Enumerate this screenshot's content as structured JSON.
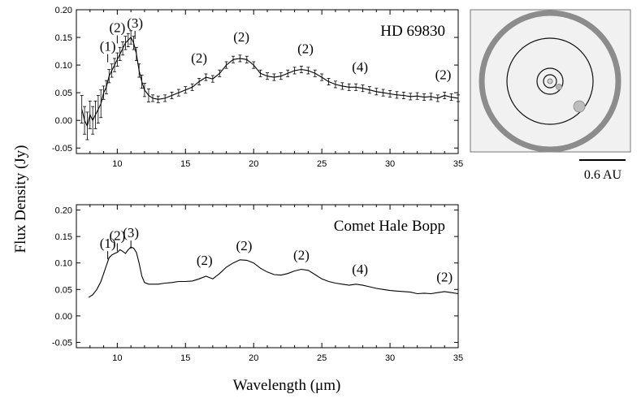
{
  "figure": {
    "ylabel": "Flux Density (Jy)",
    "xlabel": "Wavelength (μm)",
    "scale_bar_label": "0.6 AU"
  },
  "chart_data": [
    {
      "type": "line",
      "title": "HD 69830",
      "xlabel": "Wavelength (μm)",
      "ylabel": "Flux Density (Jy)",
      "xlim": [
        7,
        35
      ],
      "ylim": [
        -0.06,
        0.2
      ],
      "x_ticks": [
        10,
        15,
        20,
        25,
        30,
        35
      ],
      "y_ticks": [
        "-0.05",
        "0.00",
        "0.05",
        "0.10",
        "0.15",
        "0.20"
      ],
      "error_bars": true,
      "series": [
        {
          "name": "HD 69830 spectrum",
          "x": [
            7.4,
            7.6,
            7.8,
            8.0,
            8.2,
            8.4,
            8.6,
            8.8,
            9.0,
            9.2,
            9.4,
            9.6,
            9.8,
            10.0,
            10.2,
            10.4,
            10.6,
            10.8,
            11.0,
            11.2,
            11.4,
            11.6,
            11.8,
            12.0,
            12.3,
            12.6,
            13.0,
            13.5,
            14.0,
            14.5,
            15.0,
            15.5,
            16.0,
            16.5,
            17.0,
            17.5,
            18.0,
            18.5,
            19.0,
            19.5,
            20.0,
            20.5,
            21.0,
            21.5,
            22.0,
            22.5,
            23.0,
            23.5,
            24.0,
            24.5,
            25.0,
            25.5,
            26.0,
            26.5,
            27.0,
            27.5,
            28.0,
            28.5,
            29.0,
            29.5,
            30.0,
            30.5,
            31.0,
            31.5,
            32.0,
            32.5,
            33.0,
            33.5,
            34.0,
            34.5,
            35.0
          ],
          "y": [
            0.02,
            0.0,
            -0.01,
            0.01,
            0.0,
            0.01,
            0.02,
            0.03,
            0.05,
            0.06,
            0.08,
            0.09,
            0.1,
            0.11,
            0.12,
            0.13,
            0.14,
            0.145,
            0.15,
            0.14,
            0.12,
            0.09,
            0.07,
            0.055,
            0.045,
            0.04,
            0.038,
            0.04,
            0.045,
            0.05,
            0.055,
            0.06,
            0.07,
            0.078,
            0.075,
            0.085,
            0.1,
            0.11,
            0.112,
            0.11,
            0.1,
            0.085,
            0.08,
            0.078,
            0.08,
            0.085,
            0.09,
            0.092,
            0.09,
            0.085,
            0.078,
            0.07,
            0.065,
            0.062,
            0.06,
            0.06,
            0.058,
            0.055,
            0.052,
            0.05,
            0.048,
            0.046,
            0.045,
            0.043,
            0.044,
            0.042,
            0.043,
            0.04,
            0.045,
            0.042,
            0.04
          ]
        }
      ],
      "annotations": [
        {
          "label": "(1)",
          "x": 9.3,
          "y": 0.108
        },
        {
          "label": "(2)",
          "x": 10.0,
          "y": 0.142
        },
        {
          "label": "(3)",
          "x": 11.3,
          "y": 0.15
        },
        {
          "label": "(2)",
          "x": 16.0,
          "y": 0.087
        },
        {
          "label": "(2)",
          "x": 19.1,
          "y": 0.125
        },
        {
          "label": "(2)",
          "x": 23.8,
          "y": 0.104
        },
        {
          "label": "(4)",
          "x": 27.8,
          "y": 0.071
        },
        {
          "label": "(2)",
          "x": 33.9,
          "y": 0.057
        }
      ]
    },
    {
      "type": "line",
      "title": "Comet Hale Bopp",
      "xlabel": "Wavelength (μm)",
      "ylabel": "Flux Density (Jy)",
      "xlim": [
        7,
        35
      ],
      "ylim": [
        -0.06,
        0.21
      ],
      "x_ticks": [
        10,
        15,
        20,
        25,
        30,
        35
      ],
      "y_ticks": [
        "-0.05",
        "0.00",
        "0.05",
        "0.10",
        "0.15",
        "0.20"
      ],
      "error_bars": false,
      "series": [
        {
          "name": "Hale Bopp spectrum",
          "x": [
            7.9,
            8.2,
            8.5,
            8.8,
            9.0,
            9.2,
            9.4,
            9.6,
            9.8,
            10.0,
            10.2,
            10.4,
            10.6,
            10.8,
            11.0,
            11.2,
            11.4,
            11.6,
            11.8,
            12.0,
            12.3,
            12.6,
            13.0,
            13.5,
            14.0,
            14.5,
            15.0,
            15.5,
            16.0,
            16.5,
            17.0,
            17.5,
            18.0,
            18.5,
            19.0,
            19.5,
            20.0,
            20.5,
            21.0,
            21.5,
            22.0,
            22.5,
            23.0,
            23.5,
            24.0,
            24.5,
            25.0,
            25.5,
            26.0,
            26.5,
            27.0,
            27.5,
            28.0,
            28.5,
            29.0,
            29.5,
            30.0,
            30.5,
            31.0,
            31.5,
            32.0,
            32.5,
            33.0,
            33.5,
            34.0,
            34.5,
            35.0
          ],
          "y": [
            0.035,
            0.04,
            0.05,
            0.065,
            0.08,
            0.095,
            0.11,
            0.115,
            0.118,
            0.12,
            0.125,
            0.122,
            0.118,
            0.125,
            0.13,
            0.128,
            0.12,
            0.1,
            0.075,
            0.063,
            0.06,
            0.06,
            0.06,
            0.062,
            0.063,
            0.065,
            0.065,
            0.066,
            0.07,
            0.075,
            0.07,
            0.08,
            0.092,
            0.1,
            0.106,
            0.105,
            0.1,
            0.09,
            0.083,
            0.078,
            0.077,
            0.08,
            0.085,
            0.088,
            0.086,
            0.078,
            0.07,
            0.065,
            0.062,
            0.06,
            0.058,
            0.06,
            0.058,
            0.055,
            0.052,
            0.05,
            0.048,
            0.047,
            0.046,
            0.045,
            0.042,
            0.043,
            0.042,
            0.044,
            0.046,
            0.044,
            0.042
          ]
        }
      ],
      "annotations": [
        {
          "label": "(1)",
          "x": 9.3,
          "y": 0.11
        },
        {
          "label": "(2)",
          "x": 10.0,
          "y": 0.125
        },
        {
          "label": "(3)",
          "x": 11.0,
          "y": 0.13
        },
        {
          "label": "(2)",
          "x": 16.4,
          "y": 0.078
        },
        {
          "label": "(2)",
          "x": 19.3,
          "y": 0.106
        },
        {
          "label": "(2)",
          "x": 23.5,
          "y": 0.088
        },
        {
          "label": "(4)",
          "x": 27.8,
          "y": 0.061
        },
        {
          "label": "(2)",
          "x": 34.0,
          "y": 0.047
        }
      ]
    }
  ]
}
